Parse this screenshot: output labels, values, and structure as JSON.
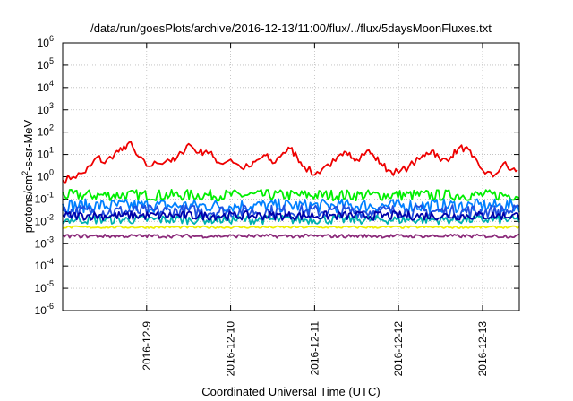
{
  "chart_data": {
    "type": "line",
    "title": "/data/run/goesPlots/archive/2016-12-13/11:00/flux/../flux/5daysMoonFluxes.txt",
    "xlabel": "Coordinated Universal Time (UTC)",
    "ylabel": {
      "pre": "protons/cm",
      "sup": "2",
      "post": "-s-sr-MeV"
    },
    "ylim": [
      1e-06,
      1000000.0
    ],
    "yscale": "log",
    "xlim": [
      "2016-12-08T00:00",
      "2016-12-13T10:30"
    ],
    "grid": true,
    "x_ticks": [
      "2016-12-9",
      "2016-12-10",
      "2016-12-11",
      "2016-12-12",
      "2016-12-13"
    ],
    "y_ticks": [
      {
        "base": "10",
        "exp": "6"
      },
      {
        "base": "10",
        "exp": "5"
      },
      {
        "base": "10",
        "exp": "4"
      },
      {
        "base": "10",
        "exp": "3"
      },
      {
        "base": "10",
        "exp": "2"
      },
      {
        "base": "10",
        "exp": "1"
      },
      {
        "base": "10",
        "exp": "0"
      },
      {
        "base": "10",
        "exp": "-1"
      },
      {
        "base": "10",
        "exp": "-2"
      },
      {
        "base": "10",
        "exp": "-3"
      },
      {
        "base": "10",
        "exp": "-4"
      },
      {
        "base": "10",
        "exp": "-5"
      },
      {
        "base": "10",
        "exp": "-6"
      }
    ],
    "series": [
      {
        "color": "#ee0000",
        "x": [
          "2016-12-08T00:00",
          "2016-12-08T03:00",
          "2016-12-08T06:00",
          "2016-12-08T08:00",
          "2016-12-08T10:00",
          "2016-12-08T12:00",
          "2016-12-08T15:00",
          "2016-12-08T17:00",
          "2016-12-08T19:00",
          "2016-12-08T21:00",
          "2016-12-09T00:00",
          "2016-12-09T03:00",
          "2016-12-09T06:00",
          "2016-12-09T08:00",
          "2016-12-09T10:00",
          "2016-12-09T12:00",
          "2016-12-09T15:00",
          "2016-12-09T17:00",
          "2016-12-09T19:00",
          "2016-12-09T21:00",
          "2016-12-10T00:00",
          "2016-12-10T03:00",
          "2016-12-10T06:00",
          "2016-12-10T08:00",
          "2016-12-10T10:00",
          "2016-12-10T12:00",
          "2016-12-10T15:00",
          "2016-12-10T17:00",
          "2016-12-10T19:00",
          "2016-12-10T21:00",
          "2016-12-11T00:00",
          "2016-12-11T03:00",
          "2016-12-11T06:00",
          "2016-12-11T08:00",
          "2016-12-11T10:00",
          "2016-12-11T12:00",
          "2016-12-11T15:00",
          "2016-12-11T17:00",
          "2016-12-11T19:00",
          "2016-12-11T21:00",
          "2016-12-12T00:00",
          "2016-12-12T03:00",
          "2016-12-12T06:00",
          "2016-12-12T08:00",
          "2016-12-12T10:00",
          "2016-12-12T12:00",
          "2016-12-12T15:00",
          "2016-12-12T17:00",
          "2016-12-12T19:00",
          "2016-12-12T21:00",
          "2016-12-13T00:00",
          "2016-12-13T03:00",
          "2016-12-13T06:00",
          "2016-12-13T08:00",
          "2016-12-13T10:00"
        ],
        "values": [
          0.7,
          1.0,
          1.5,
          3.0,
          8.0,
          4.0,
          12,
          15,
          35,
          10,
          3,
          4,
          6,
          5,
          12,
          30,
          12,
          15,
          8,
          4,
          6,
          2.5,
          3,
          6,
          9,
          4,
          12,
          18,
          8,
          3,
          1.2,
          3,
          5,
          9,
          12,
          6,
          15,
          8,
          4,
          2,
          1.5,
          3,
          6,
          12,
          15,
          5,
          8,
          18,
          20,
          8,
          2,
          1,
          4,
          2,
          2
        ]
      },
      {
        "color": "#00ee00",
        "x": [
          "2016-12-08T00:00",
          "2016-12-13T10:30"
        ],
        "values": [
          0.15,
          0.15
        ],
        "noise": 0.25
      },
      {
        "color": "#0080ff",
        "x": [
          "2016-12-08T00:00",
          "2016-12-13T10:30"
        ],
        "values": [
          0.05,
          0.05
        ],
        "noise": 0.3
      },
      {
        "color": "#2050e0",
        "x": [
          "2016-12-08T00:00",
          "2016-12-13T10:30"
        ],
        "values": [
          0.028,
          0.028
        ],
        "noise": 0.3
      },
      {
        "color": "#00b0b0",
        "x": [
          "2016-12-08T00:00",
          "2016-12-13T10:30"
        ],
        "values": [
          0.012,
          0.012
        ],
        "noise": 0.2
      },
      {
        "color": "#0000aa",
        "x": [
          "2016-12-08T00:00",
          "2016-12-13T10:30"
        ],
        "values": [
          0.018,
          0.018
        ],
        "noise": 0.2
      },
      {
        "color": "#eeee00",
        "x": [
          "2016-12-08T00:00",
          "2016-12-13T10:30"
        ],
        "values": [
          0.0055,
          0.0055
        ],
        "noise": 0.05
      },
      {
        "color": "#8b2a7a",
        "x": [
          "2016-12-08T00:00",
          "2016-12-13T10:30"
        ],
        "values": [
          0.0022,
          0.0022
        ],
        "noise": 0.08
      }
    ]
  }
}
